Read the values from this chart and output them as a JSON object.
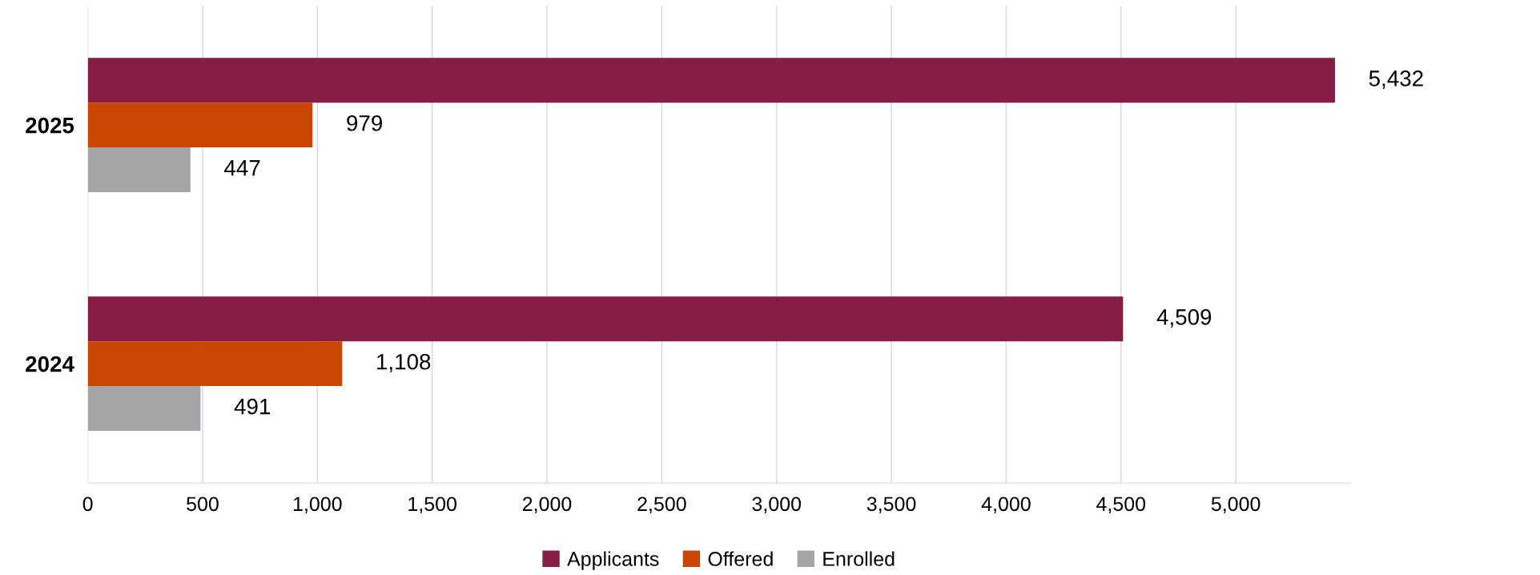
{
  "chart_data": {
    "type": "bar",
    "orientation": "horizontal",
    "categories": [
      "2025",
      "2024"
    ],
    "series": [
      {
        "name": "Applicants",
        "color": "#841e44",
        "values": [
          5432,
          4509
        ]
      },
      {
        "name": "Offered",
        "color": "#c84600",
        "values": [
          979,
          1108
        ]
      },
      {
        "name": "Enrolled",
        "color": "#a5a5a5",
        "values": [
          447,
          491
        ]
      }
    ],
    "xlim": [
      0,
      5500
    ],
    "xticks": [
      0,
      500,
      {
        "value": 1000,
        "label": "1,000"
      },
      {
        "value": 1500,
        "label": "1,500"
      },
      {
        "value": 2000,
        "label": "2,000"
      },
      {
        "value": 2500,
        "label": "2,500"
      },
      {
        "value": 3000,
        "label": "3,000"
      },
      {
        "value": 3500,
        "label": "3,500"
      },
      {
        "value": 4000,
        "label": "4,000"
      },
      {
        "value": 4500,
        "label": "4,500"
      },
      {
        "value": 5000,
        "label": "5,000"
      }
    ],
    "value_labels": [
      [
        "5,432",
        "4,509"
      ],
      [
        "979",
        "1,108"
      ],
      [
        "447",
        "491"
      ]
    ],
    "grid": "x",
    "legend": "bottom"
  }
}
